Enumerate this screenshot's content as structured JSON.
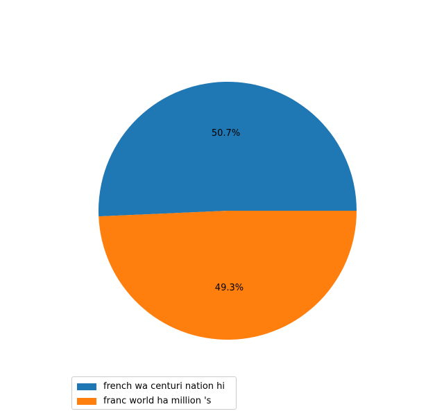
{
  "chart_data": {
    "type": "pie",
    "labels": [
      "french wa centuri nation hi",
      "franc world ha million 's"
    ],
    "values": [
      50.7,
      49.3
    ],
    "value_labels": [
      "50.7%",
      "49.3%"
    ],
    "colors": [
      "#1f77b4",
      "#ff7f0e"
    ],
    "start_angle_deg": 0,
    "direction": "counterclockwise",
    "legend_position": "lower-left"
  }
}
